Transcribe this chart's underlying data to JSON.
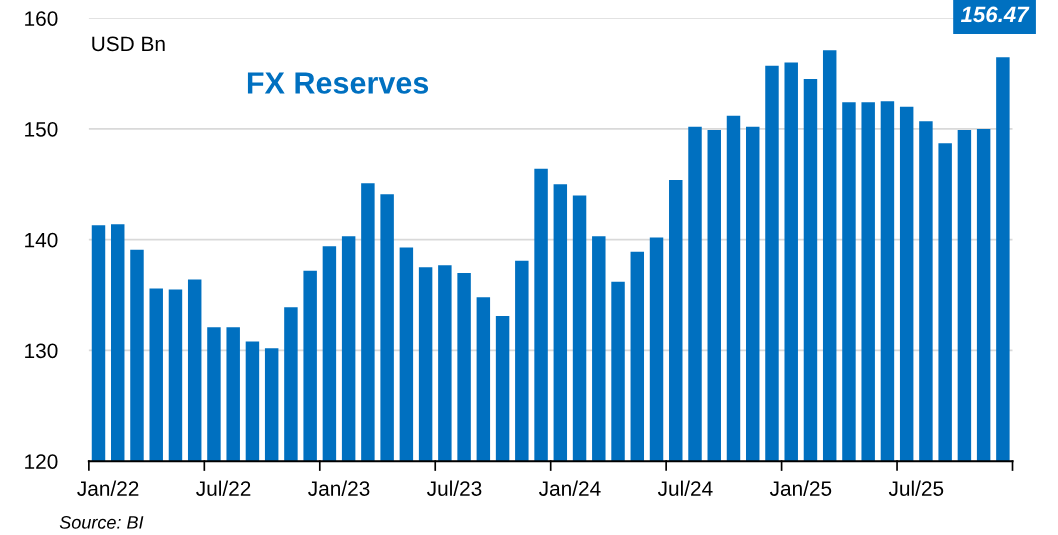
{
  "chart_data": {
    "type": "bar",
    "title": "FX Reserves",
    "ylabel": "USD Bn",
    "annotations": [
      "Source: BI"
    ],
    "categories": [
      "Jan/22",
      null,
      null,
      null,
      null,
      null,
      "Jul/22",
      null,
      null,
      null,
      null,
      null,
      "Jan/23",
      null,
      null,
      null,
      null,
      null,
      "Jul/23",
      null,
      null,
      null,
      null,
      null,
      "Jan/24",
      null,
      null,
      null,
      null,
      null,
      "Jul/24",
      null,
      null,
      null,
      null,
      null,
      "Jan/25",
      null,
      null,
      null,
      null,
      null,
      "Jul/25",
      null,
      null,
      null,
      null,
      null
    ],
    "values": [
      141.3,
      141.4,
      139.1,
      135.6,
      135.5,
      136.4,
      132.1,
      132.1,
      130.8,
      130.2,
      133.9,
      137.2,
      139.4,
      140.3,
      145.1,
      144.1,
      139.3,
      137.5,
      137.7,
      137.0,
      134.8,
      133.1,
      138.1,
      146.4,
      145.0,
      144.0,
      140.3,
      136.2,
      138.9,
      140.2,
      145.4,
      150.2,
      149.9,
      151.2,
      150.2,
      155.7,
      156.0,
      154.5,
      157.1,
      152.4,
      152.4,
      152.5,
      152.0,
      150.7,
      148.7,
      149.9,
      150.0,
      156.47
    ],
    "value_labels": [
      null,
      null,
      null,
      null,
      null,
      null,
      null,
      null,
      null,
      null,
      null,
      null,
      null,
      null,
      null,
      null,
      null,
      null,
      null,
      null,
      null,
      null,
      null,
      null,
      null,
      null,
      null,
      null,
      null,
      null,
      null,
      null,
      null,
      null,
      null,
      null,
      null,
      null,
      null,
      null,
      null,
      null,
      null,
      null,
      null,
      null,
      null,
      "156.47"
    ],
    "color": "#0070c0",
    "ylim": [
      120,
      160
    ],
    "yticks": [
      120,
      130,
      140,
      150,
      160
    ],
    "grid": "y"
  }
}
